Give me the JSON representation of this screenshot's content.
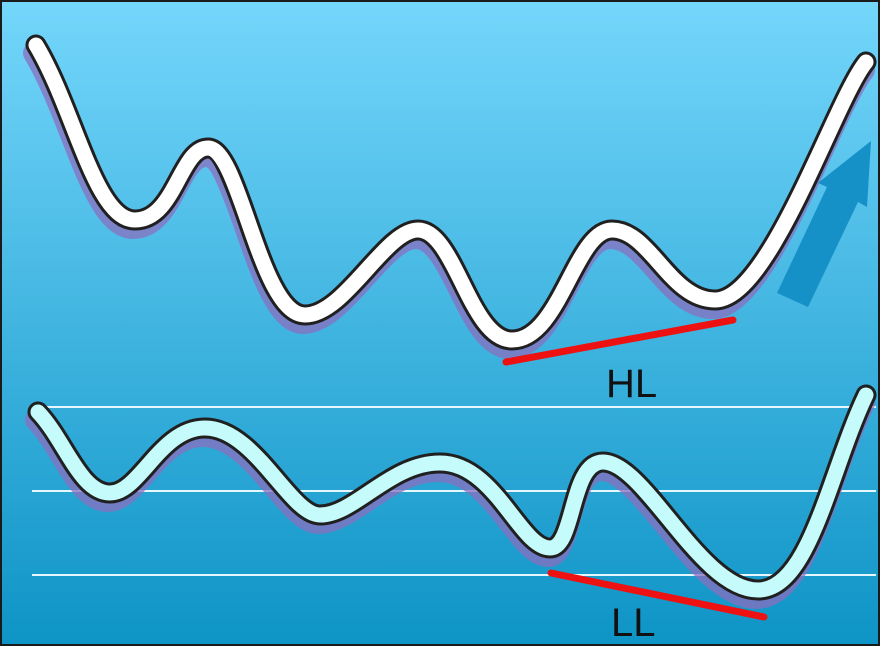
{
  "labels": {
    "higher_low": "HL",
    "lower_low": "LL"
  },
  "colors": {
    "background_top": "#74d6fb",
    "background_bottom": "#0e94c6",
    "price_line_fill": "#ffffff",
    "indicator_line_fill": "#c6fbfb",
    "line_outline": "#202020",
    "line_shadow": "#8a6fbf",
    "divergence_line": "#ee1111",
    "trend_arrow": "#1591c8",
    "reference_lines": "#e6f8ff",
    "frame": "#1a1a1a"
  },
  "icons": {
    "trend_arrow": "up-right-arrow-icon"
  }
}
